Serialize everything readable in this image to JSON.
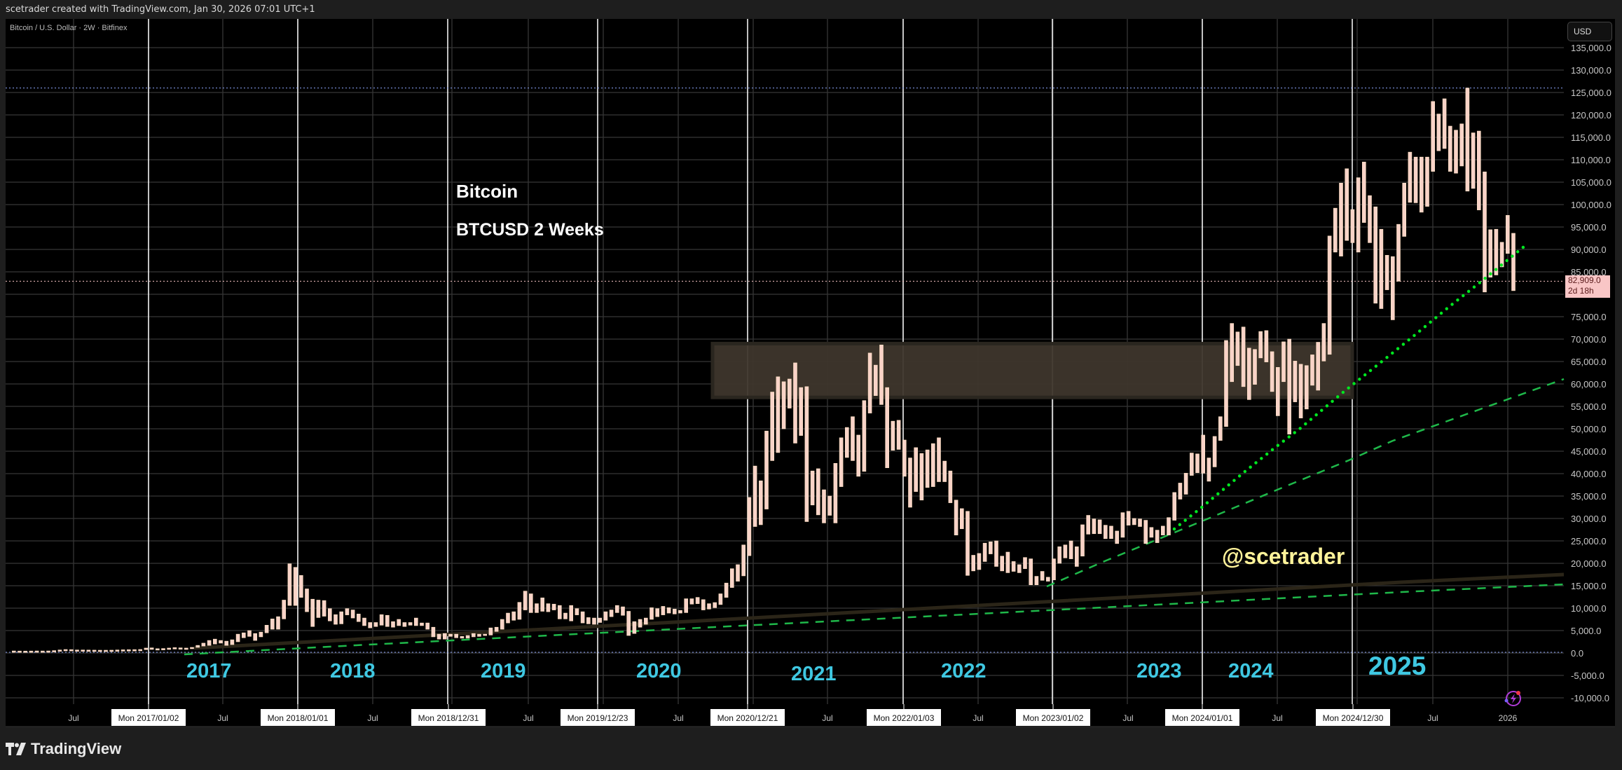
{
  "header": {
    "text": "scetrader created with TradingView.com, Jan 30, 2026 07:01 UTC+1"
  },
  "symbol_legend": "Bitcoin / U.S. Dollar · 2W · Bitfinex",
  "annotations": {
    "title": "Bitcoin",
    "subtitle": "BTCUSD 2 Weeks",
    "handle": "@scetrader",
    "years": [
      "2017",
      "2018",
      "2019",
      "2020",
      "2021",
      "2022",
      "2023",
      "2024",
      "2025"
    ]
  },
  "price_axis": {
    "currency_button": "USD",
    "ticks": [
      135000,
      130000,
      125000,
      120000,
      115000,
      110000,
      105000,
      100000,
      95000,
      90000,
      85000,
      80000,
      75000,
      70000,
      65000,
      60000,
      55000,
      50000,
      45000,
      40000,
      35000,
      30000,
      25000,
      20000,
      15000,
      10000,
      5000,
      0,
      -5000,
      -10000
    ],
    "labels": [
      "135,000.0",
      "130,000.0",
      "125,000.0",
      "120,000.0",
      "115,000.0",
      "110,000.0",
      "105,000.0",
      "100,000.0",
      "95,000.0",
      "90,000.0",
      "85,000.0",
      "",
      "75,000.0",
      "70,000.0",
      "65,000.0",
      "60,000.0",
      "55,000.0",
      "50,000.0",
      "45,000.0",
      "40,000.0",
      "35,000.0",
      "30,000.0",
      "25,000.0",
      "20,000.0",
      "15,000.0",
      "10,000.0",
      "5,000.0",
      "0.0",
      "-5,000.0",
      "-10,000.0"
    ],
    "current_price": "82,909.0",
    "countdown": "2d 18h"
  },
  "time_axis": {
    "labels": [
      {
        "text": "Jul",
        "boxed": false
      },
      {
        "text": "Mon 2017/01/02",
        "boxed": true
      },
      {
        "text": "Jul",
        "boxed": false
      },
      {
        "text": "Mon 2018/01/01",
        "boxed": true
      },
      {
        "text": "Jul",
        "boxed": false
      },
      {
        "text": "Mon 2018/12/31",
        "boxed": true
      },
      {
        "text": "Jul",
        "boxed": false
      },
      {
        "text": "Mon 2019/12/23",
        "boxed": true
      },
      {
        "text": "Jul",
        "boxed": false
      },
      {
        "text": "Mon 2020/12/21",
        "boxed": true
      },
      {
        "text": "Jul",
        "boxed": false
      },
      {
        "text": "Mon 2022/01/03",
        "boxed": true
      },
      {
        "text": "Jul",
        "boxed": false
      },
      {
        "text": "Mon 2023/01/02",
        "boxed": true
      },
      {
        "text": "Jul",
        "boxed": false
      },
      {
        "text": "Mon 2024/01/01",
        "boxed": true
      },
      {
        "text": "Jul",
        "boxed": false
      },
      {
        "text": "Mon 2024/12/30",
        "boxed": true
      },
      {
        "text": "Jul",
        "boxed": false
      },
      {
        "text": "2026",
        "boxed": false
      }
    ]
  },
  "footer": {
    "brand": "TradingView"
  },
  "colors": {
    "bar": "#f9d3c8",
    "grid": "#363636",
    "year_line": "#ffffff",
    "year_label": "#3fc8e2",
    "handle": "#fff39a",
    "dotted_trend": "#00e620",
    "dashed_trend": "#1fb84a",
    "zone": "#3e362c",
    "high_line": "#8fa8ff",
    "price_line": "#f9c6c6"
  },
  "chart_data": {
    "type": "bar",
    "series_style": "2W price ranges [top, bottom] in USD",
    "ylim": [
      -12000,
      138000
    ],
    "grid": true,
    "reference_lines": {
      "all_time_high": 126000,
      "zero": 0,
      "current_price": 82909
    },
    "zone": {
      "top": 69000,
      "bottom": 57000
    },
    "bars": [
      [
        460,
        370
      ],
      [
        440,
        380
      ],
      [
        430,
        390
      ],
      [
        440,
        400
      ],
      [
        460,
        410
      ],
      [
        450,
        410
      ],
      [
        460,
        420
      ],
      [
        540,
        440
      ],
      [
        680,
        530
      ],
      [
        780,
        580
      ],
      [
        760,
        600
      ],
      [
        680,
        620
      ],
      [
        680,
        620
      ],
      [
        660,
        580
      ],
      [
        640,
        570
      ],
      [
        620,
        560
      ],
      [
        620,
        560
      ],
      [
        630,
        580
      ],
      [
        680,
        600
      ],
      [
        720,
        640
      ],
      [
        740,
        680
      ],
      [
        760,
        700
      ],
      [
        790,
        730
      ],
      [
        1100,
        750
      ],
      [
        1150,
        800
      ],
      [
        960,
        850
      ],
      [
        1000,
        900
      ],
      [
        1100,
        950
      ],
      [
        1200,
        950
      ],
      [
        1150,
        900
      ],
      [
        1100,
        980
      ],
      [
        1250,
        1050
      ],
      [
        1700,
        1250
      ],
      [
        2200,
        1550
      ],
      [
        2800,
        1700
      ],
      [
        3100,
        2000
      ],
      [
        2800,
        2200
      ],
      [
        2640,
        1700
      ],
      [
        2950,
        1870
      ],
      [
        4200,
        2500
      ],
      [
        4500,
        3400
      ],
      [
        5000,
        3700
      ],
      [
        4350,
        2800
      ],
      [
        4660,
        3600
      ],
      [
        6200,
        4500
      ],
      [
        7600,
        5300
      ],
      [
        8100,
        5300
      ],
      [
        11800,
        7600
      ],
      [
        19900,
        10600
      ],
      [
        19100,
        10600
      ],
      [
        17300,
        12400
      ],
      [
        14300,
        9200
      ],
      [
        12000,
        5900
      ],
      [
        11800,
        7900
      ],
      [
        11700,
        8200
      ],
      [
        9900,
        7150
      ],
      [
        8550,
        6400
      ],
      [
        9200,
        6500
      ],
      [
        9900,
        8500
      ],
      [
        9600,
        7800
      ],
      [
        8700,
        7000
      ],
      [
        7800,
        6100
      ],
      [
        6800,
        5600
      ],
      [
        6800,
        5900
      ],
      [
        8550,
        6200
      ],
      [
        8400,
        5900
      ],
      [
        7000,
        5750
      ],
      [
        7500,
        6100
      ],
      [
        6800,
        5900
      ],
      [
        6800,
        6200
      ],
      [
        7800,
        6100
      ],
      [
        6700,
        6100
      ],
      [
        6700,
        5300
      ],
      [
        5750,
        3600
      ],
      [
        4200,
        3100
      ],
      [
        4350,
        3100
      ],
      [
        4200,
        3700
      ],
      [
        4200,
        3400
      ],
      [
        3700,
        3300
      ],
      [
        3900,
        3300
      ],
      [
        4350,
        3600
      ],
      [
        4200,
        3700
      ],
      [
        4200,
        3900
      ],
      [
        5600,
        4000
      ],
      [
        5750,
        4800
      ],
      [
        7500,
        5300
      ],
      [
        8900,
        6700
      ],
      [
        9200,
        7300
      ],
      [
        11300,
        7500
      ],
      [
        13800,
        9600
      ],
      [
        13200,
        9000
      ],
      [
        11000,
        9000
      ],
      [
        12300,
        9300
      ],
      [
        11000,
        9200
      ],
      [
        10900,
        9600
      ],
      [
        10600,
        7600
      ],
      [
        8900,
        7600
      ],
      [
        10600,
        7150
      ],
      [
        9900,
        8500
      ],
      [
        9200,
        6700
      ],
      [
        7900,
        6500
      ],
      [
        7800,
        6400
      ],
      [
        7800,
        6800
      ],
      [
        9200,
        7300
      ],
      [
        9600,
        8100
      ],
      [
        10600,
        9000
      ],
      [
        10300,
        8400
      ],
      [
        9300,
        3900
      ],
      [
        7000,
        4350
      ],
      [
        7500,
        5750
      ],
      [
        7800,
        6400
      ],
      [
        10100,
        7500
      ],
      [
        9900,
        8100
      ],
      [
        10400,
        8500
      ],
      [
        10100,
        8900
      ],
      [
        9800,
        8700
      ],
      [
        9500,
        8900
      ],
      [
        12100,
        9000
      ],
      [
        12100,
        10900
      ],
      [
        12400,
        11000
      ],
      [
        11900,
        9600
      ],
      [
        11000,
        9800
      ],
      [
        11250,
        10100
      ],
      [
        13200,
        10800
      ],
      [
        15600,
        12400
      ],
      [
        18800,
        14600
      ],
      [
        19700,
        16000
      ],
      [
        24100,
        17200
      ],
      [
        34700,
        21700
      ],
      [
        41700,
        28200
      ],
      [
        38400,
        28600
      ],
      [
        49500,
        32100
      ],
      [
        58200,
        42900
      ],
      [
        61600,
        44700
      ],
      [
        60500,
        50000
      ],
      [
        61100,
        54600
      ],
      [
        64700,
        46800
      ],
      [
        59200,
        48500
      ],
      [
        59400,
        29300
      ],
      [
        40600,
        33000
      ],
      [
        41100,
        30800
      ],
      [
        36400,
        29000
      ],
      [
        35000,
        30700
      ],
      [
        42300,
        29000
      ],
      [
        48000,
        37100
      ],
      [
        50300,
        43600
      ],
      [
        52700,
        42900
      ],
      [
        48600,
        39400
      ],
      [
        56300,
        40500
      ],
      [
        66900,
        53500
      ],
      [
        64200,
        57400
      ],
      [
        68700,
        55400
      ],
      [
        59200,
        41300
      ],
      [
        51700,
        45200
      ],
      [
        51900,
        45400
      ],
      [
        47500,
        39400
      ],
      [
        43500,
        32500
      ],
      [
        45800,
        36000
      ],
      [
        44500,
        34100
      ],
      [
        45300,
        36900
      ],
      [
        46700,
        37100
      ],
      [
        48000,
        38200
      ],
      [
        42800,
        38200
      ],
      [
        40600,
        33500
      ],
      [
        34100,
        26300
      ],
      [
        32200,
        27700
      ],
      [
        31600,
        17300
      ],
      [
        21800,
        18300
      ],
      [
        22200,
        18600
      ],
      [
        24500,
        20400
      ],
      [
        24800,
        22100
      ],
      [
        25000,
        19300
      ],
      [
        21600,
        18300
      ],
      [
        22500,
        17900
      ],
      [
        20400,
        18200
      ],
      [
        19700,
        17900
      ],
      [
        21300,
        18800
      ],
      [
        21000,
        15200
      ],
      [
        17100,
        15200
      ],
      [
        18200,
        16200
      ],
      [
        16900,
        16000
      ],
      [
        21000,
        16300
      ],
      [
        23700,
        20000
      ],
      [
        24100,
        21200
      ],
      [
        25000,
        21000
      ],
      [
        23700,
        19300
      ],
      [
        28600,
        21600
      ],
      [
        30700,
        26500
      ],
      [
        29900,
        26600
      ],
      [
        29700,
        26600
      ],
      [
        28500,
        25500
      ],
      [
        28300,
        25500
      ],
      [
        27200,
        24400
      ],
      [
        31300,
        25800
      ],
      [
        31600,
        28500
      ],
      [
        30000,
        28600
      ],
      [
        29900,
        28200
      ],
      [
        29600,
        24400
      ],
      [
        28000,
        25800
      ],
      [
        27400,
        24600
      ],
      [
        28300,
        26300
      ],
      [
        30200,
        26300
      ],
      [
        35800,
        29600
      ],
      [
        37900,
        34300
      ],
      [
        40100,
        35400
      ],
      [
        44600,
        39600
      ],
      [
        44400,
        40200
      ],
      [
        48600,
        40100
      ],
      [
        43500,
        38300
      ],
      [
        48300,
        41500
      ],
      [
        52700,
        47400
      ],
      [
        69700,
        50500
      ],
      [
        73500,
        60500
      ],
      [
        71600,
        64100
      ],
      [
        72700,
        59400
      ],
      [
        68000,
        56500
      ],
      [
        67700,
        59900
      ],
      [
        71700,
        65800
      ],
      [
        71900,
        64900
      ],
      [
        67200,
        58300
      ],
      [
        63700,
        52900
      ],
      [
        69400,
        60500
      ],
      [
        70000,
        48800
      ],
      [
        65100,
        56000
      ],
      [
        64400,
        52400
      ],
      [
        64100,
        54400
      ],
      [
        66500,
        59700
      ],
      [
        69300,
        58600
      ],
      [
        73500,
        65100
      ],
      [
        93000,
        66600
      ],
      [
        99200,
        89400
      ],
      [
        104800,
        88500
      ],
      [
        108000,
        92000
      ],
      [
        98900,
        91500
      ],
      [
        106000,
        89400
      ],
      [
        109500,
        96000
      ],
      [
        102000,
        91500
      ],
      [
        99500,
        78000
      ],
      [
        94500,
        76800
      ],
      [
        88700,
        81000
      ],
      [
        88400,
        74300
      ],
      [
        95600,
        82900
      ],
      [
        104800,
        92900
      ],
      [
        111700,
        100500
      ],
      [
        110600,
        100400
      ],
      [
        110600,
        98300
      ],
      [
        110600,
        99600
      ],
      [
        123000,
        107400
      ],
      [
        120200,
        112000
      ],
      [
        123600,
        112500
      ],
      [
        117500,
        107400
      ],
      [
        116600,
        107000
      ],
      [
        118000,
        108600
      ],
      [
        126000,
        103000
      ],
      [
        116000,
        103600
      ],
      [
        116400,
        98800
      ],
      [
        107300,
        80500
      ],
      [
        94400,
        83800
      ],
      [
        94500,
        84300
      ],
      [
        91600,
        86100
      ],
      [
        97600,
        89100
      ],
      [
        93600,
        80800
      ]
    ]
  }
}
